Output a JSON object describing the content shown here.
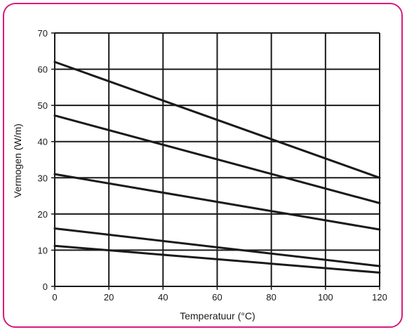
{
  "chart_data": {
    "type": "line",
    "title": "",
    "xlabel": "Temperatuur (°C)",
    "ylabel": "Vermogen (W/m)",
    "xlim": [
      0,
      120
    ],
    "ylim": [
      0,
      70
    ],
    "x_ticks": [
      0,
      20,
      40,
      60,
      80,
      100,
      120
    ],
    "y_ticks": [
      0,
      10,
      20,
      30,
      40,
      50,
      60,
      70
    ],
    "grid": true,
    "series": [
      {
        "x": [
          0,
          120
        ],
        "values": [
          62,
          30
        ]
      },
      {
        "x": [
          0,
          120
        ],
        "values": [
          47.2,
          23
        ]
      },
      {
        "x": [
          0,
          120
        ],
        "values": [
          31,
          15.7
        ]
      },
      {
        "x": [
          0,
          120
        ],
        "values": [
          16,
          5.6
        ]
      },
      {
        "x": [
          0,
          120
        ],
        "values": [
          11.2,
          3.8
        ]
      }
    ]
  },
  "colors": {
    "border": "#d81b7f",
    "lines": "#1a1a1a"
  }
}
